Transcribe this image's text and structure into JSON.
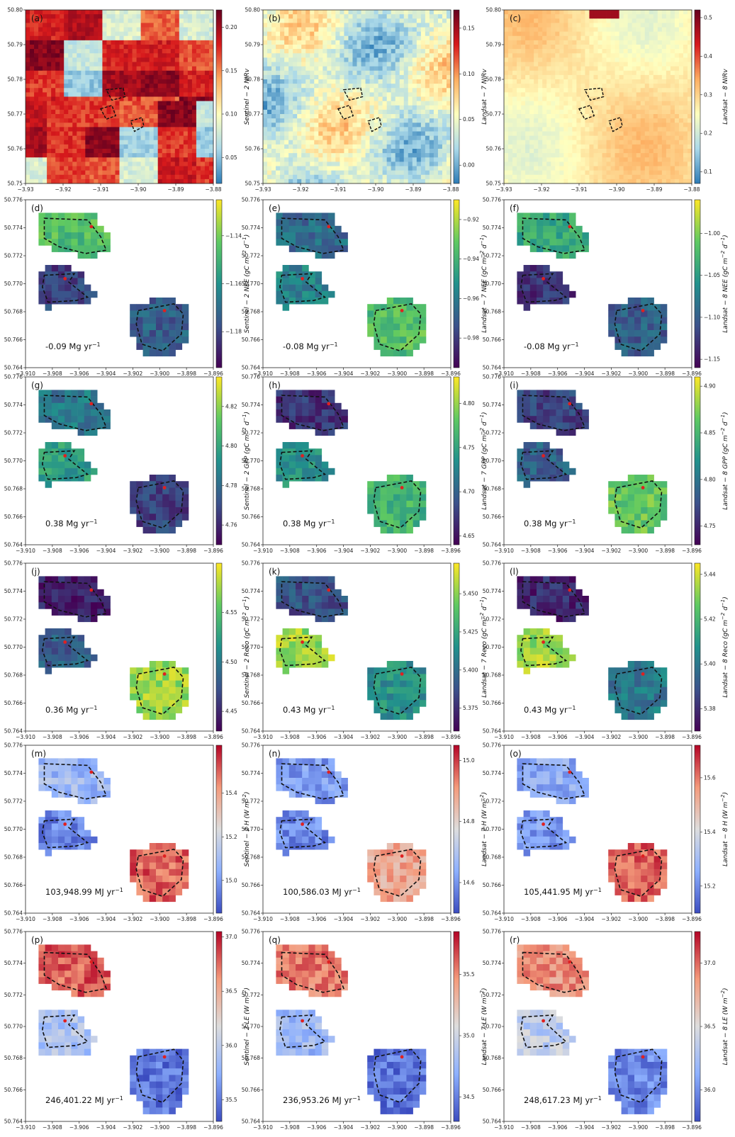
{
  "colormaps": {
    "spectral": [
      "#2c7bb6",
      "#abd9e9",
      "#ffffbf",
      "#fdae61",
      "#d7191c",
      "#67001f"
    ],
    "viridis": [
      "#440154",
      "#3b528b",
      "#21918c",
      "#5ec962",
      "#fde725"
    ],
    "coolwarm": [
      "#3b4cc0",
      "#8db0fe",
      "#dddddd",
      "#f49a7b",
      "#b40426"
    ]
  },
  "chart_data": [
    {
      "id": "a",
      "label": "(a)",
      "type": "heatmap",
      "row": 0,
      "col": 0,
      "map": "overview",
      "cmap": "spectral",
      "pattern": "fields",
      "cbar_label": "Sentinel − 2 NIRv",
      "cbar_ticks": [
        "0.05",
        "0.10",
        "0.15",
        "0.20"
      ],
      "cbar_range": [
        0.02,
        0.22
      ],
      "x_ticks": [
        "−3.93",
        "−3.92",
        "−3.91",
        "−3.90",
        "−3.89",
        "−3.88"
      ],
      "y_ticks": [
        "50.80",
        "50.79",
        "50.78",
        "50.77",
        "50.76",
        "50.75"
      ]
    },
    {
      "id": "b",
      "label": "(b)",
      "type": "heatmap",
      "row": 0,
      "col": 1,
      "map": "overview",
      "cmap": "spectral",
      "pattern": "patchy",
      "cbar_label": "Landsat − 7 NIRv",
      "cbar_ticks": [
        "0.00",
        "0.05",
        "0.10",
        "0.15"
      ],
      "cbar_range": [
        -0.02,
        0.17
      ],
      "x_ticks": [
        "−3.93",
        "−3.92",
        "−3.91",
        "−3.90",
        "−3.89",
        "−3.88"
      ],
      "y_ticks": [
        "50.80",
        "50.79",
        "50.78",
        "50.77",
        "50.76",
        "50.75"
      ]
    },
    {
      "id": "c",
      "label": "(c)",
      "type": "heatmap",
      "row": 0,
      "col": 2,
      "map": "overview",
      "cmap": "spectral",
      "pattern": "smooth",
      "cbar_label": "Landsat − 8 NIRv",
      "cbar_ticks": [
        "0.1",
        "0.2",
        "0.3",
        "0.4",
        "0.5"
      ],
      "cbar_range": [
        0.07,
        0.52
      ],
      "x_ticks": [
        "−3.93",
        "−3.92",
        "−3.91",
        "−3.90",
        "−3.89",
        "−3.88"
      ],
      "y_ticks": [
        "50.80",
        "50.79",
        "50.78",
        "50.77",
        "50.76",
        "50.75"
      ]
    },
    {
      "id": "d",
      "label": "(d)",
      "type": "heatmap",
      "row": 1,
      "col": 0,
      "map": "fields",
      "cmap": "viridis",
      "field_levels": [
        0.7,
        0.2,
        0.3
      ],
      "annotation": "-0.09 Mg yr",
      "ann_sup": "−1",
      "cbar_label": "Sentinel − 2 NEE (gC m",
      "cbar_ticks": [
        "−1.18",
        "−1.16",
        "−1.14"
      ],
      "cbar_range": [
        -1.195,
        -1.125
      ],
      "x_ticks": [
        "−3.910",
        "−3.908",
        "−3.906",
        "−3.904",
        "−3.902",
        "−3.900",
        "−3.898",
        "−3.896"
      ],
      "y_ticks": [
        "50.776",
        "50.774",
        "50.772",
        "50.770",
        "50.768",
        "50.766",
        "50.764"
      ]
    },
    {
      "id": "e",
      "label": "(e)",
      "type": "heatmap",
      "row": 1,
      "col": 1,
      "map": "fields",
      "cmap": "viridis",
      "field_levels": [
        0.35,
        0.45,
        0.7
      ],
      "annotation": "-0.08 Mg yr",
      "ann_sup": "−1",
      "cbar_label": "Landsat − 7 NEE (gC m",
      "cbar_ticks": [
        "−0.98",
        "−0.96",
        "−0.94",
        "−0.92"
      ],
      "cbar_range": [
        -0.995,
        -0.91
      ],
      "x_ticks": [
        "−3.910",
        "−3.908",
        "−3.906",
        "−3.904",
        "−3.902",
        "−3.900",
        "−3.898",
        "−3.896"
      ],
      "y_ticks": [
        "50.776",
        "50.774",
        "50.772",
        "50.770",
        "50.768",
        "50.766",
        "50.764"
      ]
    },
    {
      "id": "f",
      "label": "(f)",
      "type": "heatmap",
      "row": 1,
      "col": 2,
      "map": "fields",
      "cmap": "viridis",
      "field_levels": [
        0.6,
        0.15,
        0.3
      ],
      "annotation": "-0.08 Mg yr",
      "ann_sup": "−1",
      "cbar_label": "Landsat − 8 NEE (gC m",
      "cbar_ticks": [
        "−1.15",
        "−1.10",
        "−1.05",
        "−1.00"
      ],
      "cbar_range": [
        -1.16,
        -0.96
      ],
      "x_ticks": [
        "−3.910",
        "−3.908",
        "−3.906",
        "−3.904",
        "−3.902",
        "−3.900",
        "−3.898",
        "−3.896"
      ],
      "y_ticks": [
        "50.776",
        "50.774",
        "50.772",
        "50.770",
        "50.768",
        "50.766",
        "50.764"
      ]
    },
    {
      "id": "g",
      "label": "(g)",
      "type": "heatmap",
      "row": 2,
      "col": 0,
      "map": "fields",
      "cmap": "viridis",
      "field_levels": [
        0.4,
        0.55,
        0.2
      ],
      "annotation": "0.38 Mg yr",
      "ann_sup": "−1",
      "cbar_label": "Sentinel − 2 GPP (gC m",
      "cbar_ticks": [
        "4.76",
        "4.78",
        "4.80",
        "4.82"
      ],
      "cbar_range": [
        4.75,
        4.835
      ],
      "x_ticks": [
        "−3.910",
        "−3.908",
        "−3.906",
        "−3.904",
        "−3.902",
        "−3.900",
        "−3.898",
        "−3.896"
      ],
      "y_ticks": [
        "50.776",
        "50.774",
        "50.772",
        "50.770",
        "50.768",
        "50.766",
        "50.764"
      ]
    },
    {
      "id": "h",
      "label": "(h)",
      "type": "heatmap",
      "row": 2,
      "col": 1,
      "map": "fields",
      "cmap": "viridis",
      "field_levels": [
        0.15,
        0.5,
        0.65
      ],
      "annotation": "0.38 Mg yr",
      "ann_sup": "−1",
      "cbar_label": "Landsat − 7 GPP (gC m",
      "cbar_ticks": [
        "4.65",
        "4.70",
        "4.75",
        "4.80"
      ],
      "cbar_range": [
        4.64,
        4.83
      ],
      "x_ticks": [
        "−3.910",
        "−3.908",
        "−3.906",
        "−3.904",
        "−3.902",
        "−3.900",
        "−3.898",
        "−3.896"
      ],
      "y_ticks": [
        "50.776",
        "50.774",
        "50.772",
        "50.770",
        "50.768",
        "50.766",
        "50.764"
      ]
    },
    {
      "id": "i",
      "label": "(i)",
      "type": "heatmap",
      "row": 2,
      "col": 2,
      "map": "fields",
      "cmap": "viridis",
      "field_levels": [
        0.2,
        0.3,
        0.75
      ],
      "annotation": "0.38 Mg yr",
      "ann_sup": "−1",
      "cbar_label": "Landsat − 8 GPP (gC m",
      "cbar_ticks": [
        "4.75",
        "4.80",
        "4.85",
        "4.90"
      ],
      "cbar_range": [
        4.73,
        4.91
      ],
      "x_ticks": [
        "−3.910",
        "−3.908",
        "−3.906",
        "−3.904",
        "−3.902",
        "−3.900",
        "−3.898",
        "−3.896"
      ],
      "y_ticks": [
        "50.776",
        "50.774",
        "50.772",
        "50.770",
        "50.768",
        "50.766",
        "50.764"
      ]
    },
    {
      "id": "j",
      "label": "(j)",
      "type": "heatmap",
      "row": 3,
      "col": 0,
      "map": "fields",
      "cmap": "viridis",
      "field_levels": [
        0.08,
        0.3,
        0.85
      ],
      "annotation": "0.36 Mg yr",
      "ann_sup": "−1",
      "cbar_label": "Sentinel − 2 Reco (gC m",
      "cbar_ticks": [
        "4.45",
        "4.50",
        "4.55"
      ],
      "cbar_range": [
        4.43,
        4.6
      ],
      "x_ticks": [
        "−3.910",
        "−3.908",
        "−3.906",
        "−3.904",
        "−3.902",
        "−3.900",
        "−3.898",
        "−3.896"
      ],
      "y_ticks": [
        "50.776",
        "50.774",
        "50.772",
        "50.770",
        "50.768",
        "50.766",
        "50.764"
      ]
    },
    {
      "id": "k",
      "label": "(k)",
      "type": "heatmap",
      "row": 3,
      "col": 1,
      "map": "fields",
      "cmap": "viridis",
      "field_levels": [
        0.25,
        0.85,
        0.5
      ],
      "annotation": "0.43 Mg yr",
      "ann_sup": "−1",
      "cbar_label": "Landsat − 7 Reco (gC m",
      "cbar_ticks": [
        "5.375",
        "5.400",
        "5.425",
        "5.450"
      ],
      "cbar_range": [
        5.36,
        5.47
      ],
      "x_ticks": [
        "−3.910",
        "−3.908",
        "−3.906",
        "−3.904",
        "−3.902",
        "−3.900",
        "−3.898",
        "−3.896"
      ],
      "y_ticks": [
        "50.776",
        "50.774",
        "50.772",
        "50.770",
        "50.768",
        "50.766",
        "50.764"
      ]
    },
    {
      "id": "l",
      "label": "(l)",
      "type": "heatmap",
      "row": 3,
      "col": 2,
      "map": "fields",
      "cmap": "viridis",
      "field_levels": [
        0.12,
        0.85,
        0.4
      ],
      "annotation": "0.43 Mg yr",
      "ann_sup": "−1",
      "cbar_label": "Landsat − 8 Reco (gC m",
      "cbar_ticks": [
        "5.38",
        "5.40",
        "5.42",
        "5.44"
      ],
      "cbar_range": [
        5.37,
        5.445
      ],
      "x_ticks": [
        "−3.910",
        "−3.908",
        "−3.906",
        "−3.904",
        "−3.902",
        "−3.900",
        "−3.898",
        "−3.896"
      ],
      "y_ticks": [
        "50.776",
        "50.774",
        "50.772",
        "50.770",
        "50.768",
        "50.766",
        "50.764"
      ]
    },
    {
      "id": "m",
      "label": "(m)",
      "type": "heatmap",
      "row": 4,
      "col": 0,
      "map": "fields",
      "cmap": "coolwarm",
      "field_levels": [
        0.3,
        0.15,
        0.85
      ],
      "annotation": "103,948.99 MJ yr",
      "ann_sup": "−1",
      "cbar_label": "Sentinel − 2 H (W m",
      "cbar_ticks": [
        "15.0",
        "15.2",
        "15.4"
      ],
      "cbar_range": [
        14.85,
        15.62
      ],
      "x_ticks": [
        "−3.910",
        "−3.908",
        "−3.906",
        "−3.904",
        "−3.902",
        "−3.900",
        "−3.898",
        "−3.896"
      ],
      "y_ticks": [
        "50.776",
        "50.774",
        "50.772",
        "50.770",
        "50.768",
        "50.766",
        "50.764"
      ]
    },
    {
      "id": "n",
      "label": "(n)",
      "type": "heatmap",
      "row": 4,
      "col": 1,
      "map": "fields",
      "cmap": "coolwarm",
      "field_levels": [
        0.2,
        0.15,
        0.7
      ],
      "annotation": "100,586.03 MJ yr",
      "ann_sup": "−1",
      "cbar_label": "Landsat − 7 H (W m",
      "cbar_ticks": [
        "14.6",
        "14.8",
        "15.0"
      ],
      "cbar_range": [
        14.5,
        15.05
      ],
      "x_ticks": [
        "−3.910",
        "−3.908",
        "−3.906",
        "−3.904",
        "−3.902",
        "−3.900",
        "−3.898",
        "−3.896"
      ],
      "y_ticks": [
        "50.776",
        "50.774",
        "50.772",
        "50.770",
        "50.768",
        "50.766",
        "50.764"
      ]
    },
    {
      "id": "o",
      "label": "(o)",
      "type": "heatmap",
      "row": 4,
      "col": 2,
      "map": "fields",
      "cmap": "coolwarm",
      "field_levels": [
        0.25,
        0.2,
        0.85
      ],
      "annotation": "105,441.95 MJ yr",
      "ann_sup": "−1",
      "cbar_label": "Landsat − 8 H (W m",
      "cbar_ticks": [
        "15.2",
        "15.4",
        "15.6"
      ],
      "cbar_range": [
        15.1,
        15.72
      ],
      "x_ticks": [
        "−3.910",
        "−3.908",
        "−3.906",
        "−3.904",
        "−3.902",
        "−3.900",
        "−3.898",
        "−3.896"
      ],
      "y_ticks": [
        "50.776",
        "50.774",
        "50.772",
        "50.770",
        "50.768",
        "50.766",
        "50.764"
      ]
    },
    {
      "id": "p",
      "label": "(p)",
      "type": "heatmap",
      "row": 5,
      "col": 0,
      "map": "fields",
      "cmap": "coolwarm",
      "field_levels": [
        0.85,
        0.35,
        0.1
      ],
      "annotation": "246,401.22 MJ yr",
      "ann_sup": "−1",
      "cbar_label": "Sentinel − 2 LE (W m",
      "cbar_ticks": [
        "35.5",
        "36.0",
        "36.5",
        "37.0"
      ],
      "cbar_range": [
        35.3,
        37.05
      ],
      "x_ticks": [
        "−3.910",
        "−3.908",
        "−3.906",
        "−3.904",
        "−3.902",
        "−3.900",
        "−3.898",
        "−3.896"
      ],
      "y_ticks": [
        "50.776",
        "50.774",
        "50.772",
        "50.770",
        "50.768",
        "50.766",
        "50.764"
      ]
    },
    {
      "id": "q",
      "label": "(q)",
      "type": "heatmap",
      "row": 5,
      "col": 1,
      "map": "fields",
      "cmap": "coolwarm",
      "field_levels": [
        0.8,
        0.3,
        0.1
      ],
      "annotation": "236,953.26 MJ yr",
      "ann_sup": "−1",
      "cbar_label": "Landsat − 7 LE (W m",
      "cbar_ticks": [
        "34.5",
        "35.0",
        "35.5"
      ],
      "cbar_range": [
        34.3,
        35.85
      ],
      "x_ticks": [
        "−3.910",
        "−3.908",
        "−3.906",
        "−3.904",
        "−3.902",
        "−3.900",
        "−3.898",
        "−3.896"
      ],
      "y_ticks": [
        "50.776",
        "50.774",
        "50.772",
        "50.770",
        "50.768",
        "50.766",
        "50.764"
      ]
    },
    {
      "id": "r",
      "label": "(r)",
      "type": "heatmap",
      "row": 5,
      "col": 2,
      "map": "fields",
      "cmap": "coolwarm",
      "field_levels": [
        0.75,
        0.4,
        0.15
      ],
      "annotation": "248,617.23 MJ yr",
      "ann_sup": "−1",
      "cbar_label": "Landsat − 8 LE (W m",
      "cbar_ticks": [
        "36.0",
        "36.5",
        "37.0"
      ],
      "cbar_range": [
        35.75,
        37.25
      ],
      "x_ticks": [
        "−3.910",
        "−3.908",
        "−3.906",
        "−3.904",
        "−3.902",
        "−3.900",
        "−3.898",
        "−3.896"
      ],
      "y_ticks": [
        "50.776",
        "50.774",
        "50.772",
        "50.770",
        "50.768",
        "50.766",
        "50.764"
      ]
    }
  ]
}
